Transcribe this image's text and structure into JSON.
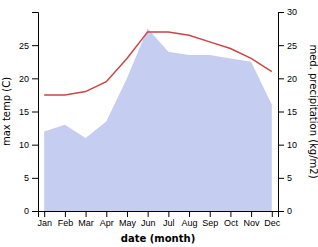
{
  "chart_data": {
    "type": "line",
    "categories": [
      "Jan",
      "Feb",
      "Mar",
      "Apr",
      "May",
      "Jun",
      "Jul",
      "Aug",
      "Sep",
      "Oct",
      "Nov",
      "Dec"
    ],
    "series": [
      {
        "type": "area",
        "axis": "y2",
        "color": "#c5cdf0",
        "values": [
          12.0,
          13.0,
          11.0,
          13.5,
          20.0,
          27.5,
          24.0,
          23.5,
          23.5,
          23.0,
          22.5,
          16.0
        ]
      },
      {
        "type": "line",
        "color": "#cc4444",
        "values": [
          17.5,
          17.5,
          18.0,
          19.5,
          23.0,
          27.0,
          27.0,
          26.5,
          25.5,
          24.5,
          23.0,
          21.0
        ]
      }
    ],
    "xlabel": "date (month)",
    "ylabel": "max temp (C)",
    "y2label": "med. precipitation (kg/m2)",
    "ylim": [
      0,
      30
    ],
    "yticks": [
      0,
      5,
      10,
      15,
      20,
      25
    ],
    "y2lim": [
      0,
      30
    ],
    "y2ticks": [
      0,
      5,
      10,
      15,
      20,
      25,
      30
    ],
    "grid": false
  }
}
